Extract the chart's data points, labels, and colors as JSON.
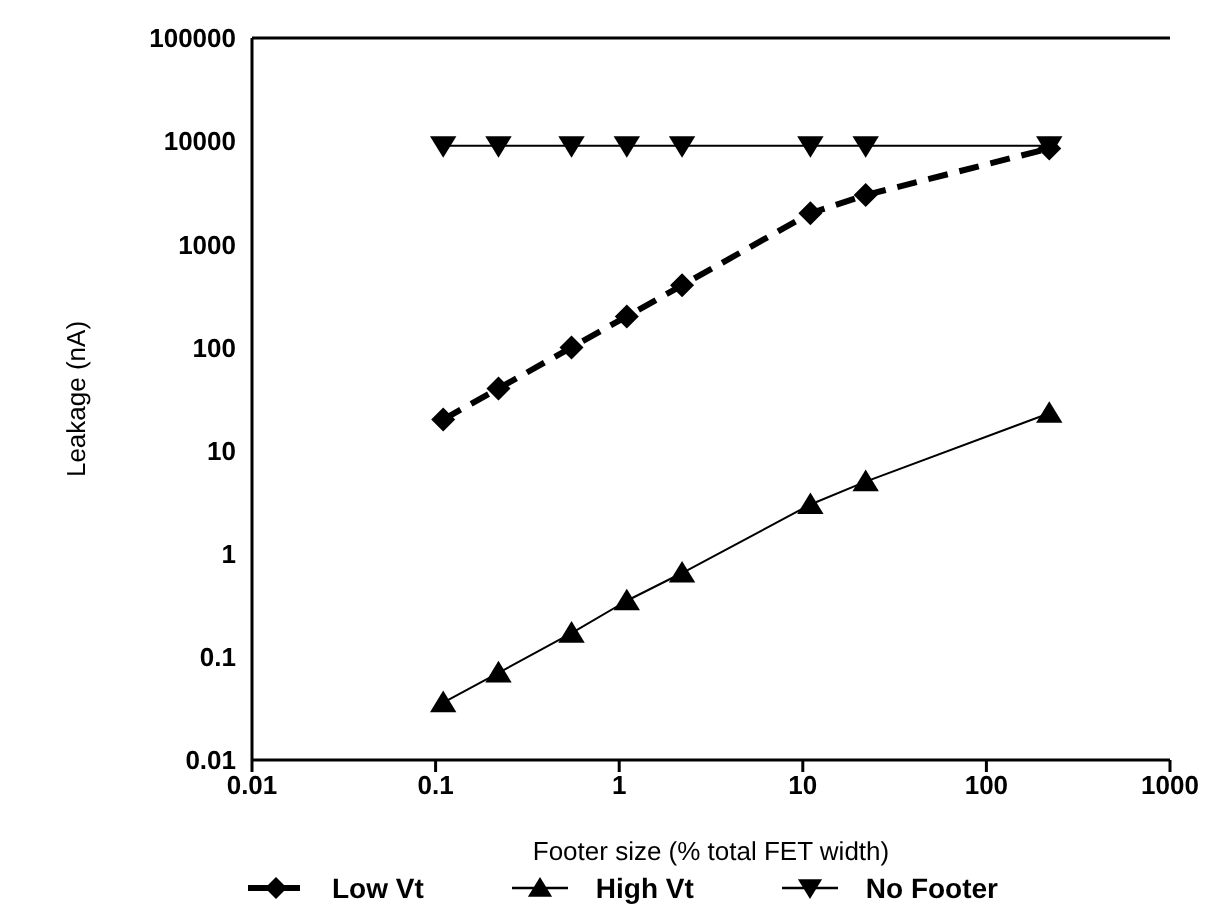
{
  "chart_data": {
    "type": "line",
    "xlabel": "Footer size (% total FET width)",
    "ylabel": "Leakage (nA)",
    "x": [
      0.11,
      0.22,
      0.55,
      1.1,
      2.2,
      11,
      22,
      220
    ],
    "series": [
      {
        "name": "Low Vt",
        "color": "#000000",
        "marker": "diamond",
        "line_style": "dashed",
        "values": [
          20,
          40,
          100,
          200,
          400,
          2000,
          3000,
          8500
        ]
      },
      {
        "name": "High Vt",
        "color": "#000000",
        "marker": "triangle",
        "line_style": "solid",
        "values": [
          0.036,
          0.07,
          0.17,
          0.35,
          0.65,
          3,
          5,
          23
        ]
      },
      {
        "name": "No Footer",
        "color": "#000000",
        "marker": "triangle-down",
        "line_style": "solid",
        "values": [
          9000,
          9000,
          9000,
          9000,
          9000,
          9000,
          9000,
          9000
        ]
      }
    ],
    "log": "xy",
    "xlim": [
      0.01,
      1000
    ],
    "xticks": [
      0.01,
      0.1,
      1,
      10,
      100,
      1000
    ],
    "ylim": [
      0.01,
      100000
    ],
    "yticks": [
      0.01,
      0.1,
      1,
      10,
      100,
      1000,
      10000,
      100000
    ],
    "grid": false,
    "legend": "bottom"
  }
}
